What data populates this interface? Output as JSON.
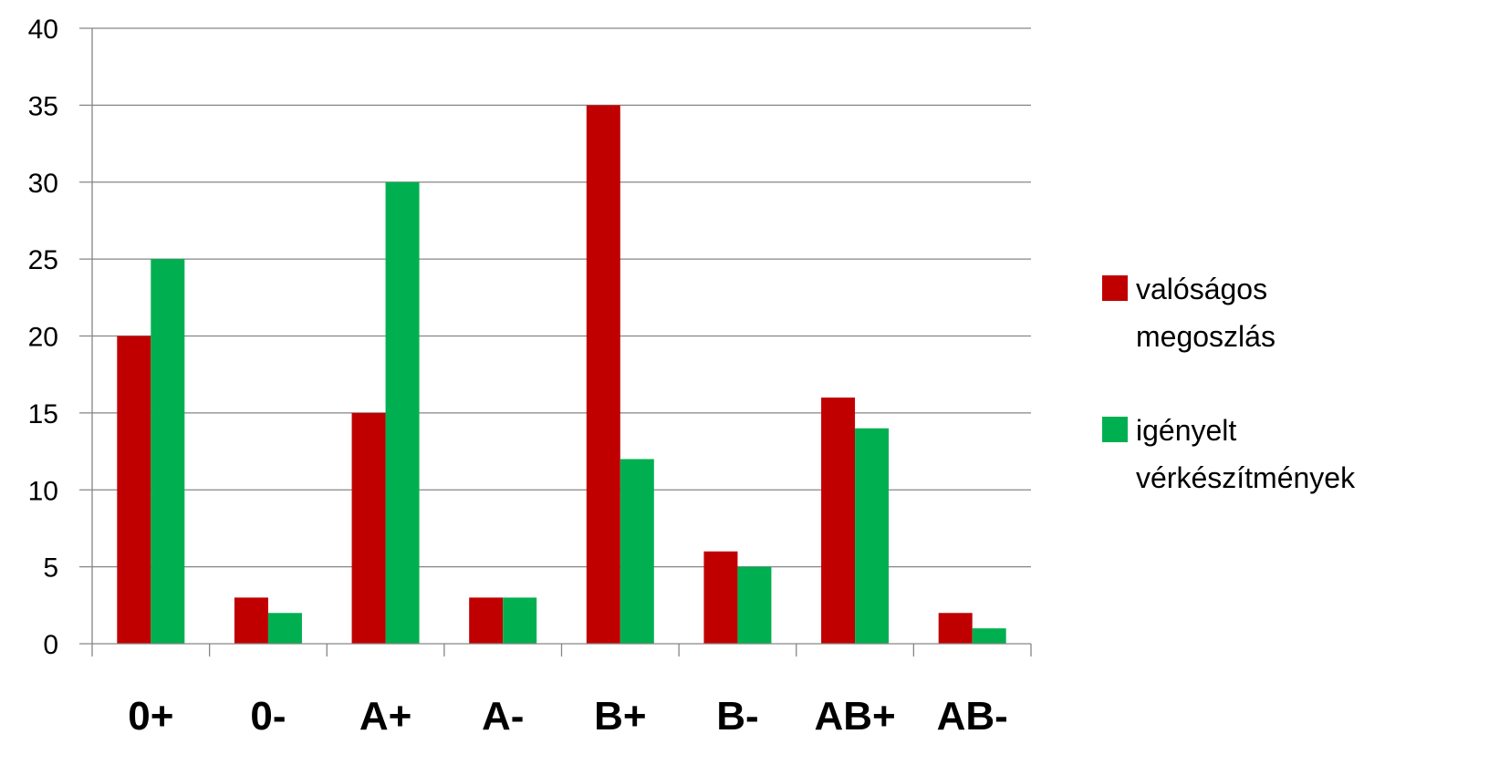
{
  "chart_data": {
    "type": "bar",
    "categories": [
      "0+",
      "0-",
      "A+",
      "A-",
      "B+",
      "B-",
      "AB+",
      "AB-"
    ],
    "series": [
      {
        "name": "valóságos megoszlás",
        "name_lines": [
          "valóságos",
          "megoszlás"
        ],
        "color": "#C00000",
        "values": [
          20,
          3,
          15,
          3,
          35,
          6,
          16,
          2
        ]
      },
      {
        "name": "igényelt vérkészítmények",
        "name_lines": [
          "igényelt",
          "vérkészítmények"
        ],
        "color": "#00B050",
        "values": [
          25,
          2,
          30,
          3,
          12,
          5,
          14,
          1
        ]
      }
    ],
    "ylim": [
      0,
      40
    ],
    "yticks": [
      0,
      5,
      10,
      15,
      20,
      25,
      30,
      35,
      40
    ],
    "grid": true,
    "legend_position": "right",
    "title": "",
    "xlabel": "",
    "ylabel": ""
  }
}
